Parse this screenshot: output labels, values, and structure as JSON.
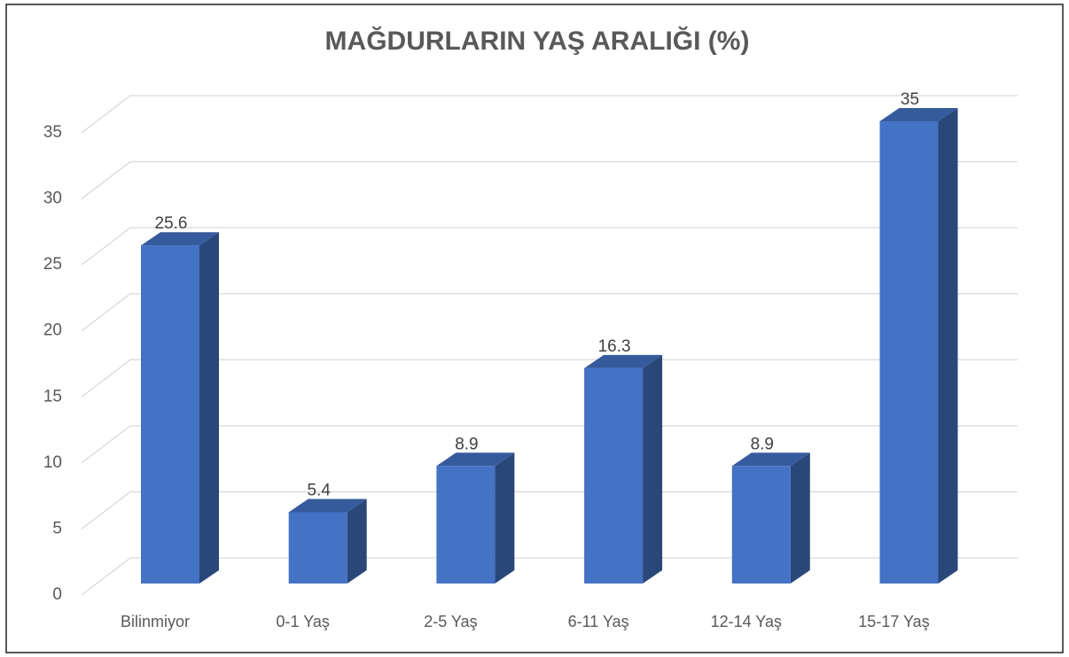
{
  "chart_data": {
    "type": "bar3d",
    "title": "MAĞDURLARIN YAŞ ARALIĞI (%)",
    "categories": [
      "Bilinmiyor",
      "0-1 Yaş",
      "2-5 Yaş",
      "6-11 Yaş",
      "12-14 Yaş",
      "15-17 Yaş"
    ],
    "values": [
      25.6,
      5.4,
      8.9,
      16.3,
      8.9,
      35
    ],
    "color": "#4472c4",
    "ylim": [
      0,
      35
    ],
    "yticks": [
      0,
      5,
      10,
      15,
      20,
      25,
      30,
      35
    ],
    "grid": true
  }
}
